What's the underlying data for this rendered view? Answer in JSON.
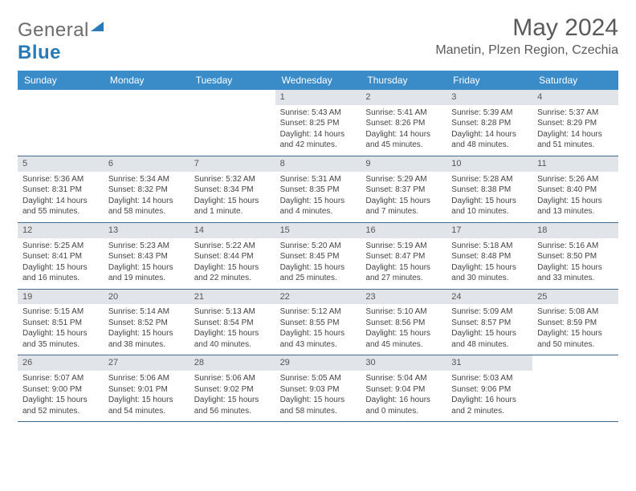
{
  "brand": {
    "part1": "General",
    "part2": "Blue"
  },
  "title": "May 2024",
  "location": "Manetin, Plzen Region, Czechia",
  "colors": {
    "header_bg": "#3a8cc9",
    "header_text": "#ffffff",
    "daynum_bg": "#e1e5e9",
    "rule": "#4a6a8a",
    "text": "#444444",
    "title_text": "#5a5a5a",
    "brand_gray": "#6b6b6b",
    "brand_blue": "#2a7ab8",
    "page_bg": "#ffffff"
  },
  "typography": {
    "weekday_fontsize": 12,
    "cell_fontsize": 10,
    "title_fontsize": 30,
    "location_fontsize": 16
  },
  "weekdays": [
    "Sunday",
    "Monday",
    "Tuesday",
    "Wednesday",
    "Thursday",
    "Friday",
    "Saturday"
  ],
  "weeks": [
    [
      {
        "n": "",
        "sunrise": "",
        "sunset": "",
        "daylight": ""
      },
      {
        "n": "",
        "sunrise": "",
        "sunset": "",
        "daylight": ""
      },
      {
        "n": "",
        "sunrise": "",
        "sunset": "",
        "daylight": ""
      },
      {
        "n": "1",
        "sunrise": "Sunrise: 5:43 AM",
        "sunset": "Sunset: 8:25 PM",
        "daylight": "Daylight: 14 hours and 42 minutes."
      },
      {
        "n": "2",
        "sunrise": "Sunrise: 5:41 AM",
        "sunset": "Sunset: 8:26 PM",
        "daylight": "Daylight: 14 hours and 45 minutes."
      },
      {
        "n": "3",
        "sunrise": "Sunrise: 5:39 AM",
        "sunset": "Sunset: 8:28 PM",
        "daylight": "Daylight: 14 hours and 48 minutes."
      },
      {
        "n": "4",
        "sunrise": "Sunrise: 5:37 AM",
        "sunset": "Sunset: 8:29 PM",
        "daylight": "Daylight: 14 hours and 51 minutes."
      }
    ],
    [
      {
        "n": "5",
        "sunrise": "Sunrise: 5:36 AM",
        "sunset": "Sunset: 8:31 PM",
        "daylight": "Daylight: 14 hours and 55 minutes."
      },
      {
        "n": "6",
        "sunrise": "Sunrise: 5:34 AM",
        "sunset": "Sunset: 8:32 PM",
        "daylight": "Daylight: 14 hours and 58 minutes."
      },
      {
        "n": "7",
        "sunrise": "Sunrise: 5:32 AM",
        "sunset": "Sunset: 8:34 PM",
        "daylight": "Daylight: 15 hours and 1 minute."
      },
      {
        "n": "8",
        "sunrise": "Sunrise: 5:31 AM",
        "sunset": "Sunset: 8:35 PM",
        "daylight": "Daylight: 15 hours and 4 minutes."
      },
      {
        "n": "9",
        "sunrise": "Sunrise: 5:29 AM",
        "sunset": "Sunset: 8:37 PM",
        "daylight": "Daylight: 15 hours and 7 minutes."
      },
      {
        "n": "10",
        "sunrise": "Sunrise: 5:28 AM",
        "sunset": "Sunset: 8:38 PM",
        "daylight": "Daylight: 15 hours and 10 minutes."
      },
      {
        "n": "11",
        "sunrise": "Sunrise: 5:26 AM",
        "sunset": "Sunset: 8:40 PM",
        "daylight": "Daylight: 15 hours and 13 minutes."
      }
    ],
    [
      {
        "n": "12",
        "sunrise": "Sunrise: 5:25 AM",
        "sunset": "Sunset: 8:41 PM",
        "daylight": "Daylight: 15 hours and 16 minutes."
      },
      {
        "n": "13",
        "sunrise": "Sunrise: 5:23 AM",
        "sunset": "Sunset: 8:43 PM",
        "daylight": "Daylight: 15 hours and 19 minutes."
      },
      {
        "n": "14",
        "sunrise": "Sunrise: 5:22 AM",
        "sunset": "Sunset: 8:44 PM",
        "daylight": "Daylight: 15 hours and 22 minutes."
      },
      {
        "n": "15",
        "sunrise": "Sunrise: 5:20 AM",
        "sunset": "Sunset: 8:45 PM",
        "daylight": "Daylight: 15 hours and 25 minutes."
      },
      {
        "n": "16",
        "sunrise": "Sunrise: 5:19 AM",
        "sunset": "Sunset: 8:47 PM",
        "daylight": "Daylight: 15 hours and 27 minutes."
      },
      {
        "n": "17",
        "sunrise": "Sunrise: 5:18 AM",
        "sunset": "Sunset: 8:48 PM",
        "daylight": "Daylight: 15 hours and 30 minutes."
      },
      {
        "n": "18",
        "sunrise": "Sunrise: 5:16 AM",
        "sunset": "Sunset: 8:50 PM",
        "daylight": "Daylight: 15 hours and 33 minutes."
      }
    ],
    [
      {
        "n": "19",
        "sunrise": "Sunrise: 5:15 AM",
        "sunset": "Sunset: 8:51 PM",
        "daylight": "Daylight: 15 hours and 35 minutes."
      },
      {
        "n": "20",
        "sunrise": "Sunrise: 5:14 AM",
        "sunset": "Sunset: 8:52 PM",
        "daylight": "Daylight: 15 hours and 38 minutes."
      },
      {
        "n": "21",
        "sunrise": "Sunrise: 5:13 AM",
        "sunset": "Sunset: 8:54 PM",
        "daylight": "Daylight: 15 hours and 40 minutes."
      },
      {
        "n": "22",
        "sunrise": "Sunrise: 5:12 AM",
        "sunset": "Sunset: 8:55 PM",
        "daylight": "Daylight: 15 hours and 43 minutes."
      },
      {
        "n": "23",
        "sunrise": "Sunrise: 5:10 AM",
        "sunset": "Sunset: 8:56 PM",
        "daylight": "Daylight: 15 hours and 45 minutes."
      },
      {
        "n": "24",
        "sunrise": "Sunrise: 5:09 AM",
        "sunset": "Sunset: 8:57 PM",
        "daylight": "Daylight: 15 hours and 48 minutes."
      },
      {
        "n": "25",
        "sunrise": "Sunrise: 5:08 AM",
        "sunset": "Sunset: 8:59 PM",
        "daylight": "Daylight: 15 hours and 50 minutes."
      }
    ],
    [
      {
        "n": "26",
        "sunrise": "Sunrise: 5:07 AM",
        "sunset": "Sunset: 9:00 PM",
        "daylight": "Daylight: 15 hours and 52 minutes."
      },
      {
        "n": "27",
        "sunrise": "Sunrise: 5:06 AM",
        "sunset": "Sunset: 9:01 PM",
        "daylight": "Daylight: 15 hours and 54 minutes."
      },
      {
        "n": "28",
        "sunrise": "Sunrise: 5:06 AM",
        "sunset": "Sunset: 9:02 PM",
        "daylight": "Daylight: 15 hours and 56 minutes."
      },
      {
        "n": "29",
        "sunrise": "Sunrise: 5:05 AM",
        "sunset": "Sunset: 9:03 PM",
        "daylight": "Daylight: 15 hours and 58 minutes."
      },
      {
        "n": "30",
        "sunrise": "Sunrise: 5:04 AM",
        "sunset": "Sunset: 9:04 PM",
        "daylight": "Daylight: 16 hours and 0 minutes."
      },
      {
        "n": "31",
        "sunrise": "Sunrise: 5:03 AM",
        "sunset": "Sunset: 9:06 PM",
        "daylight": "Daylight: 16 hours and 2 minutes."
      },
      {
        "n": "",
        "sunrise": "",
        "sunset": "",
        "daylight": ""
      }
    ]
  ]
}
